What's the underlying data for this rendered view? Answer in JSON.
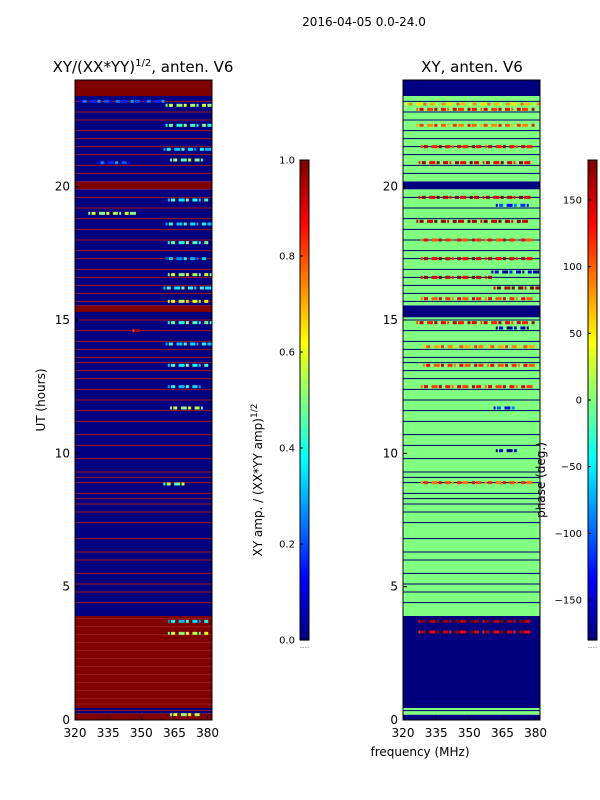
{
  "figure": {
    "suptitle": "2016-04-05 0.0-24.0",
    "xlabel": "frequency (MHz)"
  },
  "chart_data": [
    {
      "type": "heatmap",
      "title_main": "XY/(XX*YY)",
      "title_sup": "1/2",
      "title_rest": ", anten. V6",
      "xlabel": "",
      "ylabel": "UT (hours)",
      "xlim": [
        320,
        382
      ],
      "ylim": [
        0,
        24
      ],
      "xticks": [
        320,
        335,
        350,
        365,
        380
      ],
      "yticks": [
        0,
        5,
        10,
        15,
        20
      ],
      "background_value_label": "amplitude",
      "colorbar": {
        "label_main": "XY amp. / (XX*YY amp)",
        "label_sup": "1/2",
        "range": [
          0.0,
          1.0
        ],
        "ticks": [
          "0.0",
          "0.2",
          "0.4",
          "0.6",
          "0.8",
          "1.0"
        ],
        "offset_text": "......"
      },
      "blocks": [
        {
          "y0": 0.0,
          "y1": 0.25,
          "value": 1.0
        },
        {
          "y0": 0.25,
          "y1": 0.45,
          "value": 0.0
        },
        {
          "y0": 0.45,
          "y1": 3.9,
          "value": 1.0
        },
        {
          "y0": 3.9,
          "y1": 15.3,
          "value": 0.0
        },
        {
          "y0": 15.3,
          "y1": 15.55,
          "value": 1.0
        },
        {
          "y0": 15.55,
          "y1": 19.9,
          "value": 0.0
        },
        {
          "y0": 19.9,
          "y1": 20.2,
          "value": 1.0
        },
        {
          "y0": 20.2,
          "y1": 23.4,
          "value": 0.0
        },
        {
          "y0": 23.4,
          "y1": 24.0,
          "value": 1.0
        }
      ],
      "lines": [
        0.35,
        0.6,
        0.8,
        1.1,
        1.4,
        1.7,
        2.0,
        2.3,
        2.6,
        2.9,
        3.2,
        3.5,
        3.8,
        4.4,
        4.8,
        5.1,
        5.5,
        6.0,
        6.3,
        6.8,
        7.4,
        7.8,
        8.1,
        8.3,
        8.5,
        8.9,
        9.1,
        9.3,
        9.8,
        10.3,
        10.7,
        11.2,
        11.6,
        12.0,
        12.4,
        12.8,
        13.1,
        13.4,
        13.6,
        13.9,
        14.2,
        14.6,
        15.0,
        15.7,
        16.0,
        16.3,
        16.6,
        16.9,
        17.3,
        17.6,
        18.0,
        18.4,
        18.8,
        19.2,
        19.6,
        20.5,
        20.8,
        21.2,
        21.5,
        21.8,
        22.1,
        22.5,
        22.8,
        23.2
      ],
      "speckles": [
        {
          "t": 23.05,
          "f0": 361,
          "f1": 381,
          "value": 0.55
        },
        {
          "t": 23.2,
          "f0": 322,
          "f1": 360,
          "value": 0.2
        },
        {
          "t": 22.3,
          "f0": 361,
          "f1": 380,
          "value": 0.45
        },
        {
          "t": 21.4,
          "f0": 360,
          "f1": 381,
          "value": 0.35
        },
        {
          "t": 21.0,
          "f0": 363,
          "f1": 378,
          "value": 0.5
        },
        {
          "t": 20.9,
          "f0": 330,
          "f1": 345,
          "value": 0.2
        },
        {
          "t": 19.5,
          "f0": 362,
          "f1": 380,
          "value": 0.4
        },
        {
          "t": 19.0,
          "f0": 326,
          "f1": 346,
          "value": 0.55
        },
        {
          "t": 18.6,
          "f0": 361,
          "f1": 381,
          "value": 0.35
        },
        {
          "t": 17.9,
          "f0": 362,
          "f1": 380,
          "value": 0.45
        },
        {
          "t": 17.3,
          "f0": 361,
          "f1": 379,
          "value": 0.3
        },
        {
          "t": 16.7,
          "f0": 362,
          "f1": 381,
          "value": 0.55
        },
        {
          "t": 16.2,
          "f0": 360,
          "f1": 380,
          "value": 0.4
        },
        {
          "t": 15.7,
          "f0": 362,
          "f1": 379,
          "value": 0.6
        },
        {
          "t": 14.9,
          "f0": 362,
          "f1": 381,
          "value": 0.45
        },
        {
          "t": 14.6,
          "f0": 346,
          "f1": 348,
          "value": 0.9
        },
        {
          "t": 14.1,
          "f0": 361,
          "f1": 380,
          "value": 0.35
        },
        {
          "t": 13.3,
          "f0": 362,
          "f1": 380,
          "value": 0.4
        },
        {
          "t": 12.5,
          "f0": 362,
          "f1": 378,
          "value": 0.35
        },
        {
          "t": 11.7,
          "f0": 363,
          "f1": 379,
          "value": 0.55
        },
        {
          "t": 8.85,
          "f0": 360,
          "f1": 371,
          "value": 0.5
        },
        {
          "t": 3.7,
          "f0": 362,
          "f1": 379,
          "value": 0.35
        },
        {
          "t": 3.25,
          "f0": 362,
          "f1": 380,
          "value": 0.55
        },
        {
          "t": 0.2,
          "f0": 363,
          "f1": 376,
          "value": 0.55
        }
      ]
    },
    {
      "type": "heatmap",
      "title_main": "XY, anten. V6",
      "title_sup": "",
      "title_rest": "",
      "xlabel": "frequency (MHz)",
      "ylabel": "",
      "xlim": [
        320,
        382
      ],
      "ylim": [
        0,
        24
      ],
      "xticks": [
        320,
        335,
        350,
        365,
        380
      ],
      "yticks": [
        0,
        5,
        10,
        15,
        20
      ],
      "background_value_label": "phase",
      "colorbar": {
        "label_main": "phase (deg.)",
        "label_sup": "",
        "range": [
          -180,
          180
        ],
        "ticks": [
          "−150",
          "−100",
          "−50",
          "0",
          "50",
          "100",
          "150"
        ],
        "offset_text": "......"
      },
      "blocks": [
        {
          "y0": 0.0,
          "y1": 0.2,
          "value": -180
        },
        {
          "y0": 0.2,
          "y1": 0.45,
          "value": 0
        },
        {
          "y0": 0.45,
          "y1": 3.9,
          "value": -180
        },
        {
          "y0": 3.9,
          "y1": 15.1,
          "value": 0
        },
        {
          "y0": 15.1,
          "y1": 15.55,
          "value": -180
        },
        {
          "y0": 15.55,
          "y1": 19.9,
          "value": 0
        },
        {
          "y0": 19.9,
          "y1": 20.2,
          "value": -180
        },
        {
          "y0": 20.2,
          "y1": 23.4,
          "value": 0
        },
        {
          "y0": 23.4,
          "y1": 24.0,
          "value": -180
        }
      ],
      "lines": [
        0.35,
        0.6,
        0.8,
        1.1,
        1.4,
        1.7,
        2.0,
        2.3,
        2.6,
        2.9,
        3.2,
        3.5,
        3.8,
        4.4,
        4.8,
        5.1,
        5.5,
        6.0,
        6.3,
        6.8,
        7.4,
        7.8,
        8.1,
        8.3,
        8.5,
        8.9,
        9.1,
        9.3,
        9.8,
        10.3,
        10.7,
        11.2,
        11.6,
        12.0,
        12.4,
        12.8,
        13.1,
        13.4,
        13.6,
        13.9,
        14.2,
        14.6,
        15.0,
        15.7,
        16.0,
        16.3,
        16.6,
        16.9,
        17.3,
        17.6,
        18.0,
        18.4,
        18.8,
        19.2,
        19.6,
        20.5,
        20.8,
        21.2,
        21.5,
        21.8,
        22.1,
        22.5,
        22.8,
        23.2
      ],
      "speckles": [
        {
          "t": 23.1,
          "f0": 321,
          "f1": 381,
          "value": 70
        },
        {
          "t": 22.9,
          "f0": 326,
          "f1": 380,
          "value": 130
        },
        {
          "t": 22.3,
          "f0": 326,
          "f1": 380,
          "value": 100
        },
        {
          "t": 21.5,
          "f0": 328,
          "f1": 379,
          "value": 140
        },
        {
          "t": 20.9,
          "f0": 327,
          "f1": 378,
          "value": 150
        },
        {
          "t": 19.6,
          "f0": 327,
          "f1": 378,
          "value": 160
        },
        {
          "t": 19.3,
          "f0": 362,
          "f1": 378,
          "value": -120
        },
        {
          "t": 18.7,
          "f0": 326,
          "f1": 375,
          "value": 170
        },
        {
          "t": 18.0,
          "f0": 328,
          "f1": 376,
          "value": 120
        },
        {
          "t": 17.3,
          "f0": 328,
          "f1": 378,
          "value": 150
        },
        {
          "t": 16.8,
          "f0": 360,
          "f1": 380,
          "value": -150
        },
        {
          "t": 16.6,
          "f0": 328,
          "f1": 360,
          "value": 160
        },
        {
          "t": 16.2,
          "f0": 361,
          "f1": 380,
          "value": 180
        },
        {
          "t": 15.8,
          "f0": 328,
          "f1": 379,
          "value": 120
        },
        {
          "t": 14.9,
          "f0": 326,
          "f1": 380,
          "value": 140
        },
        {
          "t": 14.7,
          "f0": 362,
          "f1": 378,
          "value": -160
        },
        {
          "t": 14.0,
          "f0": 329,
          "f1": 378,
          "value": 90
        },
        {
          "t": 13.3,
          "f0": 329,
          "f1": 377,
          "value": 120
        },
        {
          "t": 12.5,
          "f0": 328,
          "f1": 376,
          "value": 130
        },
        {
          "t": 11.7,
          "f0": 361,
          "f1": 371,
          "value": -120
        },
        {
          "t": 10.1,
          "f0": 362,
          "f1": 372,
          "value": -160
        },
        {
          "t": 8.9,
          "f0": 328,
          "f1": 376,
          "value": 110
        },
        {
          "t": 3.7,
          "f0": 327,
          "f1": 379,
          "value": 170
        },
        {
          "t": 3.3,
          "f0": 327,
          "f1": 379,
          "value": 150
        }
      ]
    }
  ]
}
